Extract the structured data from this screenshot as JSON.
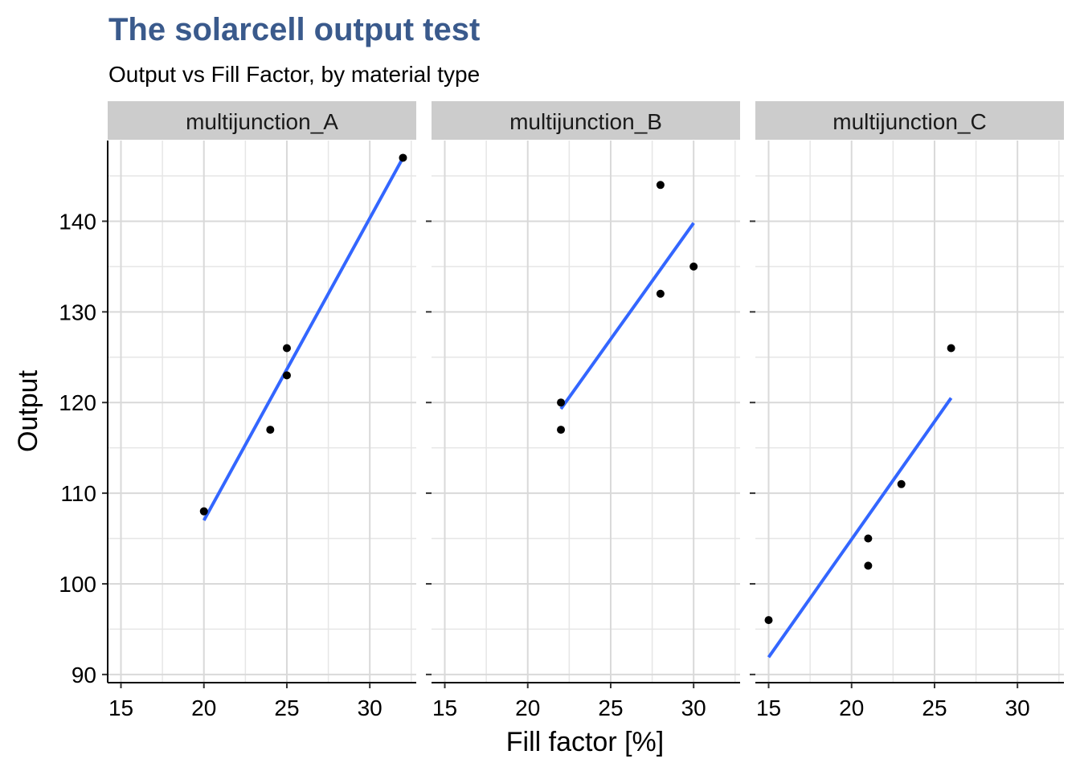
{
  "chart_data": {
    "type": "scatter",
    "title": "The solarcell output test",
    "subtitle": "Output vs Fill Factor, by material type",
    "xlabel": "Fill factor [%]",
    "ylabel": "Output",
    "xlim": [
      14.2,
      32.8
    ],
    "ylim": [
      89.1,
      148.9
    ],
    "x_ticks": [
      15,
      20,
      25,
      30
    ],
    "y_ticks": [
      90,
      100,
      110,
      120,
      130,
      140
    ],
    "grid": true,
    "legend": "none",
    "facets": [
      {
        "name": "multijunction_A",
        "points": [
          {
            "x": 20,
            "y": 108
          },
          {
            "x": 24,
            "y": 117
          },
          {
            "x": 25,
            "y": 123
          },
          {
            "x": 25,
            "y": 126
          },
          {
            "x": 32,
            "y": 147
          }
        ],
        "fit": [
          {
            "x": 20,
            "y": 107
          },
          {
            "x": 32,
            "y": 147
          }
        ]
      },
      {
        "name": "multijunction_B",
        "points": [
          {
            "x": 22,
            "y": 117
          },
          {
            "x": 22,
            "y": 120
          },
          {
            "x": 28,
            "y": 132
          },
          {
            "x": 28,
            "y": 144
          },
          {
            "x": 30,
            "y": 135
          }
        ],
        "fit": [
          {
            "x": 22,
            "y": 119.3
          },
          {
            "x": 30,
            "y": 139.8
          }
        ]
      },
      {
        "name": "multijunction_C",
        "points": [
          {
            "x": 15,
            "y": 96
          },
          {
            "x": 21,
            "y": 102
          },
          {
            "x": 21,
            "y": 105
          },
          {
            "x": 23,
            "y": 111
          },
          {
            "x": 26,
            "y": 126
          }
        ],
        "fit": [
          {
            "x": 15,
            "y": 91.9
          },
          {
            "x": 26,
            "y": 120.5
          }
        ]
      }
    ],
    "colors": {
      "title": "#3a5a8c",
      "fit_line": "#3366ff",
      "points": "#000000",
      "strip": "#cccccc",
      "grid": "#d9d9d9"
    }
  }
}
